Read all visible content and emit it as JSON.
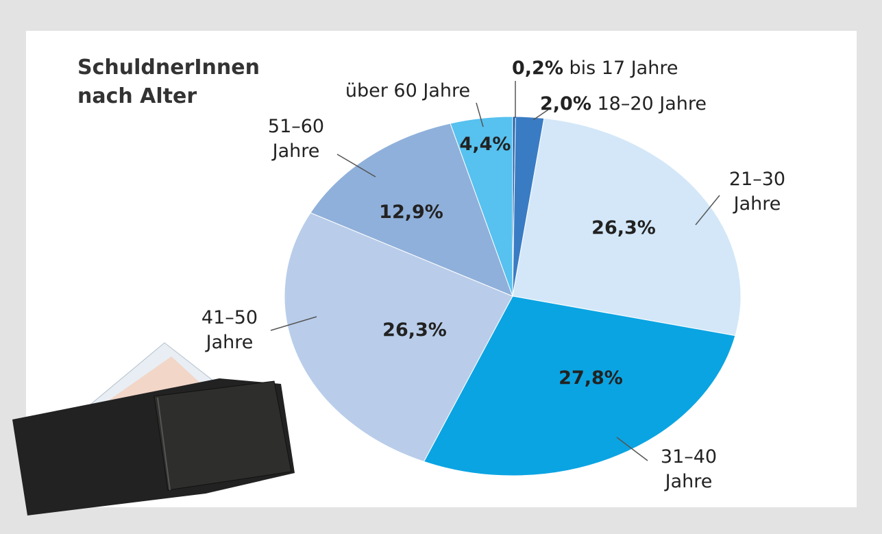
{
  "chart_data": {
    "type": "pie",
    "title": "SchuldnerInnen nach Alter",
    "categories": [
      "bis 17 Jahre",
      "18–20 Jahre",
      "21–30 Jahre",
      "31–40 Jahre",
      "41–50 Jahre",
      "51–60 Jahre",
      "über 60 Jahre"
    ],
    "values": [
      0.2,
      2.0,
      26.3,
      27.8,
      26.3,
      12.9,
      4.4
    ],
    "value_labels": [
      "0,2%",
      "2,0%",
      "26,3%",
      "27,8%",
      "26,3%",
      "12,9%",
      "4,4%"
    ],
    "colors": [
      "#1f5fa8",
      "#3a7cc4",
      "#d3e7f8",
      "#0ba4e2",
      "#b9cdea",
      "#8fb0da",
      "#57c1ef"
    ]
  }
}
